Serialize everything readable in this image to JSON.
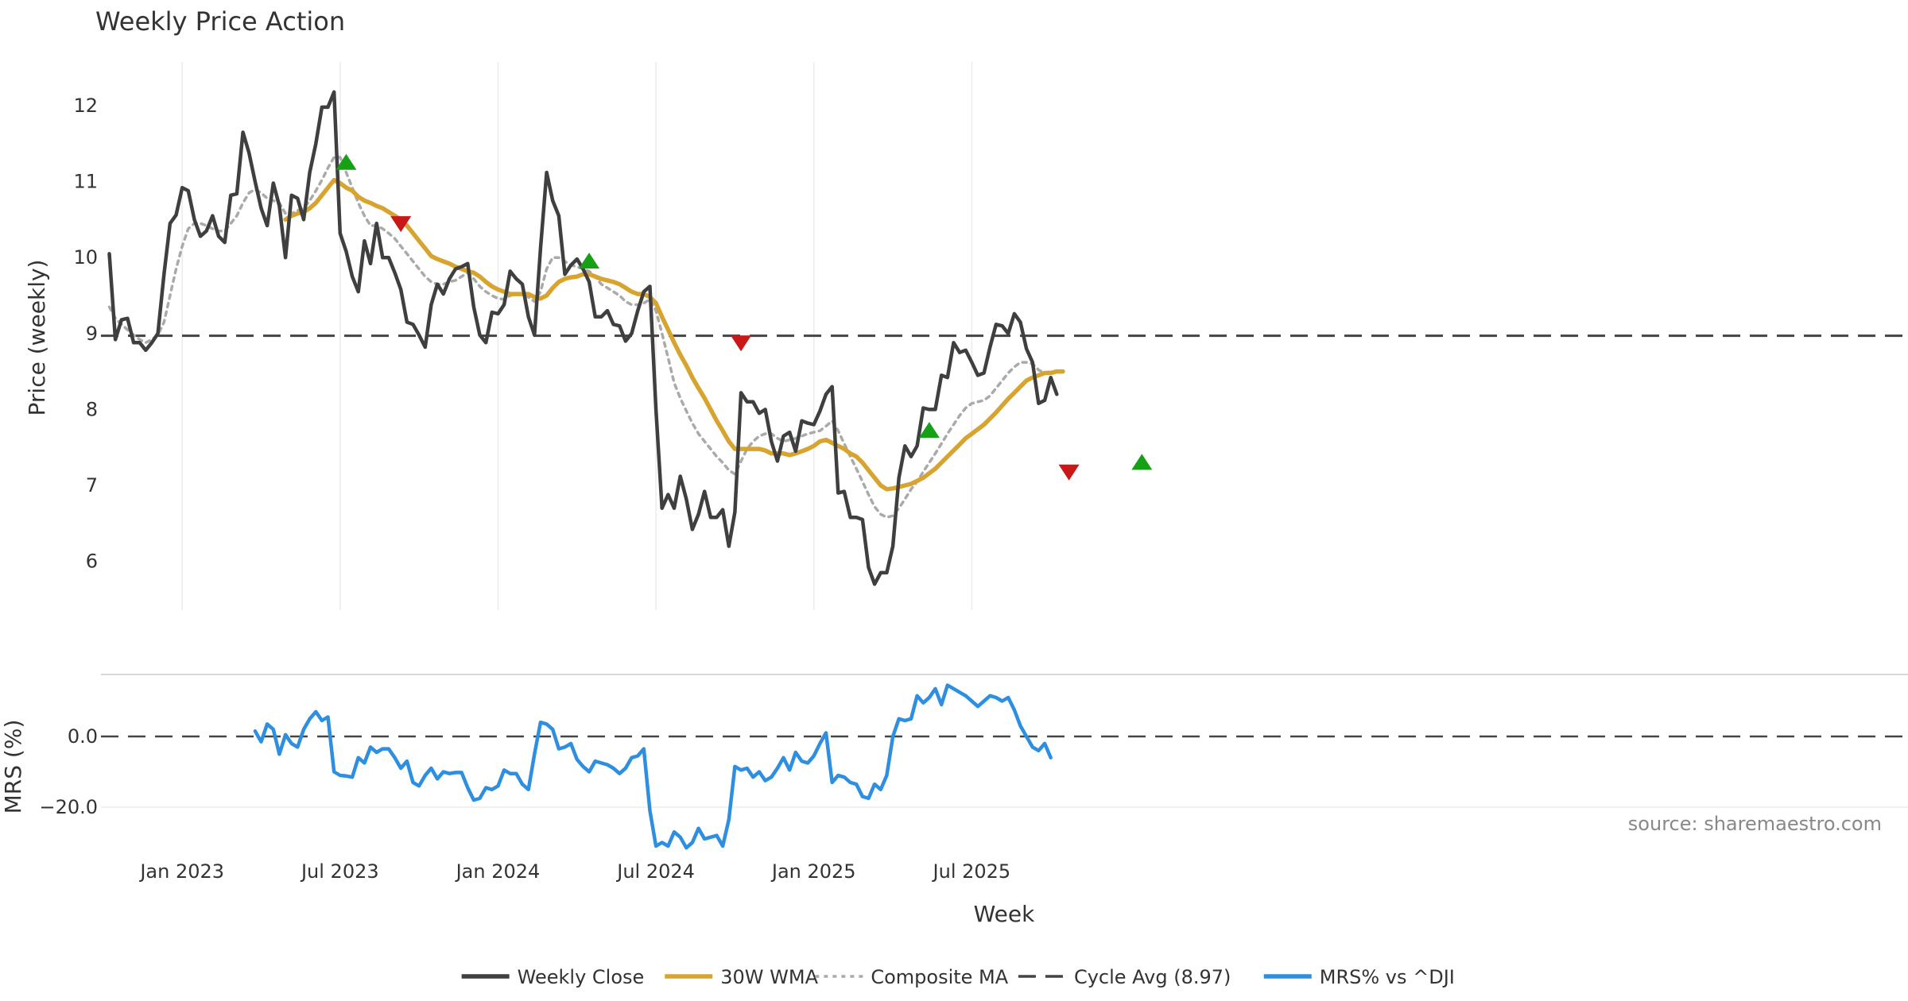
{
  "chart_data": [
    {
      "type": "line",
      "title": "Weekly Price Action",
      "ylabel": "Price (weekly)",
      "ylim": [
        5.35,
        12.6
      ],
      "yticks": [
        6,
        7,
        8,
        9,
        10,
        11,
        12
      ],
      "cycle_avg": 8.97,
      "x_start": "2022-10-10",
      "x_step_days": 7,
      "series": [
        {
          "name": "Weekly Close",
          "color": "#3f3f3f",
          "style": "solid",
          "values": [
            10.05,
            8.92,
            9.18,
            9.2,
            8.88,
            8.88,
            8.78,
            8.88,
            9.0,
            9.78,
            10.45,
            10.56,
            10.92,
            10.88,
            10.5,
            10.28,
            10.35,
            10.55,
            10.28,
            10.2,
            10.82,
            10.84,
            11.65,
            11.38,
            11.0,
            10.65,
            10.42,
            10.98,
            10.68,
            10.0,
            10.82,
            10.78,
            10.5,
            11.12,
            11.5,
            11.98,
            11.98,
            12.18,
            10.32,
            10.08,
            9.75,
            9.55,
            10.22,
            9.92,
            10.45,
            10.0,
            10.0,
            9.8,
            9.58,
            9.15,
            9.12,
            8.98,
            8.82,
            9.38,
            9.65,
            9.52,
            9.72,
            9.85,
            9.88,
            9.92,
            9.35,
            8.98,
            8.88,
            9.28,
            9.26,
            9.38,
            9.82,
            9.72,
            9.65,
            9.22,
            8.98,
            10.12,
            11.12,
            10.75,
            10.55,
            9.78,
            9.9,
            9.98,
            9.85,
            9.68,
            9.22,
            9.22,
            9.3,
            9.12,
            9.1,
            8.9,
            9.0,
            9.3,
            9.55,
            9.62,
            8.0,
            6.7,
            6.88,
            6.7,
            7.12,
            6.82,
            6.42,
            6.62,
            6.92,
            6.58,
            6.58,
            6.68,
            6.2,
            6.65,
            8.22,
            8.1,
            8.1,
            7.95,
            8.0,
            7.58,
            7.32,
            7.65,
            7.7,
            7.45,
            7.85,
            7.82,
            7.8,
            7.98,
            8.2,
            8.3,
            6.9,
            6.92,
            6.58,
            6.58,
            6.55,
            5.92,
            5.7,
            5.85,
            5.85,
            6.2,
            7.1,
            7.52,
            7.38,
            7.52,
            8.02,
            8.0,
            8.0,
            8.45,
            8.42,
            8.88,
            8.75,
            8.78,
            8.62,
            8.45,
            8.48,
            8.82,
            9.12,
            9.1,
            9.0,
            9.26,
            9.15,
            8.8,
            8.62,
            8.08,
            8.12,
            8.42,
            8.2
          ]
        },
        {
          "name": "30W WMA",
          "color": "#d8a430",
          "style": "solid",
          "start_index": 29,
          "values": [
            10.5,
            10.55,
            10.58,
            10.6,
            10.65,
            10.72,
            10.82,
            10.92,
            11.02,
            10.98,
            10.92,
            10.88,
            10.8,
            10.75,
            10.72,
            10.68,
            10.65,
            10.6,
            10.55,
            10.5,
            10.42,
            10.32,
            10.22,
            10.12,
            10.02,
            9.98,
            9.95,
            9.92,
            9.88,
            9.85,
            9.82,
            9.8,
            9.75,
            9.68,
            9.62,
            9.58,
            9.55,
            9.52,
            9.52,
            9.52,
            9.52,
            9.48,
            9.46,
            9.5,
            9.6,
            9.68,
            9.72,
            9.74,
            9.75,
            9.78,
            9.78,
            9.75,
            9.72,
            9.7,
            9.68,
            9.65,
            9.6,
            9.55,
            9.52,
            9.52,
            9.48,
            9.4,
            9.22,
            9.05,
            8.88,
            8.72,
            8.58,
            8.42,
            8.28,
            8.15,
            8.0,
            7.85,
            7.72,
            7.58,
            7.48,
            7.48,
            7.48,
            7.48,
            7.48,
            7.46,
            7.42,
            7.42,
            7.42,
            7.4,
            7.42,
            7.45,
            7.48,
            7.52,
            7.58,
            7.6,
            7.56,
            7.52,
            7.48,
            7.42,
            7.38,
            7.3,
            7.2,
            7.1,
            7.0,
            6.95,
            6.96,
            6.98,
            7.0,
            7.02,
            7.06,
            7.1,
            7.16,
            7.22,
            7.3,
            7.38,
            7.46,
            7.54,
            7.62,
            7.68,
            7.74,
            7.8,
            7.88,
            7.96,
            8.05,
            8.14,
            8.22,
            8.3,
            8.38,
            8.42,
            8.45,
            8.48,
            8.48,
            8.5,
            8.5
          ]
        },
        {
          "name": "Composite MA",
          "color": "#aaaaaa",
          "style": "dotted",
          "values": [
            9.35,
            9.2,
            9.12,
            9.05,
            8.98,
            8.92,
            8.88,
            8.92,
            8.98,
            9.15,
            9.5,
            9.85,
            10.15,
            10.38,
            10.45,
            10.45,
            10.42,
            10.38,
            10.35,
            10.35,
            10.45,
            10.55,
            10.72,
            10.85,
            10.9,
            10.85,
            10.78,
            10.75,
            10.72,
            10.58,
            10.58,
            10.62,
            10.65,
            10.75,
            10.88,
            11.02,
            11.18,
            11.32,
            11.32,
            11.12,
            10.92,
            10.72,
            10.55,
            10.42,
            10.42,
            10.38,
            10.32,
            10.25,
            10.15,
            10.05,
            9.95,
            9.85,
            9.75,
            9.68,
            9.65,
            9.65,
            9.68,
            9.7,
            9.75,
            9.8,
            9.72,
            9.62,
            9.55,
            9.5,
            9.46,
            9.45,
            9.5,
            9.52,
            9.52,
            9.48,
            9.42,
            9.55,
            9.85,
            10.0,
            10.0,
            9.95,
            9.9,
            9.88,
            9.85,
            9.82,
            9.75,
            9.65,
            9.6,
            9.55,
            9.5,
            9.42,
            9.38,
            9.38,
            9.4,
            9.45,
            9.3,
            9.0,
            8.68,
            8.35,
            8.15,
            7.98,
            7.82,
            7.68,
            7.58,
            7.48,
            7.38,
            7.3,
            7.2,
            7.15,
            7.32,
            7.48,
            7.58,
            7.65,
            7.68,
            7.68,
            7.62,
            7.58,
            7.6,
            7.62,
            7.65,
            7.68,
            7.7,
            7.72,
            7.78,
            7.85,
            7.72,
            7.55,
            7.38,
            7.22,
            7.05,
            6.88,
            6.72,
            6.62,
            6.58,
            6.6,
            6.7,
            6.82,
            6.95,
            7.05,
            7.18,
            7.3,
            7.42,
            7.55,
            7.68,
            7.8,
            7.92,
            8.02,
            8.08,
            8.1,
            8.12,
            8.18,
            8.28,
            8.38,
            8.48,
            8.56,
            8.62,
            8.62,
            8.6,
            8.52,
            8.48,
            8.5,
            8.5
          ]
        },
        {
          "name": "Cycle Avg (8.97)",
          "color": "#444444",
          "style": "dashed",
          "constant": 8.97
        }
      ],
      "markers": {
        "up": {
          "color": "#15a015",
          "points": [
            [
              39,
              11.25
            ],
            [
              79,
              9.95
            ],
            [
              135,
              7.72
            ],
            [
              170,
              7.3
            ]
          ]
        },
        "down": {
          "color": "#c81818",
          "points": [
            [
              48,
              10.45
            ],
            [
              104,
              8.88
            ],
            [
              158,
              7.18
            ]
          ]
        }
      }
    },
    {
      "type": "line",
      "ylabel": "MRS (%)",
      "xlabel": "Week",
      "ylim": [
        -36,
        19
      ],
      "yticks": [
        0.0,
        -20.0
      ],
      "ytick_labels": [
        "0.0",
        "−20.0"
      ],
      "zero_line": 0,
      "xtick_labels": [
        "Jan 2023",
        "Jul 2023",
        "Jan 2024",
        "Jul 2024",
        "Jan 2025",
        "Jul 2025"
      ],
      "xtick_index": [
        12,
        38,
        64,
        90,
        116,
        142
      ],
      "series": [
        {
          "name": "MRS% vs ^DJI",
          "color": "#2e8ee0",
          "style": "solid",
          "start_index": 24,
          "values": [
            1.5,
            -1.5,
            3.5,
            2,
            -5,
            0.5,
            -2,
            -3,
            2,
            5,
            7,
            4.5,
            5.5,
            -10,
            -11,
            -11.2,
            -11.5,
            -6,
            -7.5,
            -3,
            -4.5,
            -3.5,
            -3.5,
            -6,
            -9,
            -7,
            -13,
            -14,
            -11,
            -9,
            -12,
            -10,
            -10.5,
            -10.2,
            -10.2,
            -14.5,
            -18,
            -17.5,
            -14.5,
            -15,
            -14,
            -9.5,
            -10.5,
            -10.5,
            -13.5,
            -15,
            -5,
            4,
            3.5,
            2,
            -3.5,
            -3,
            -2,
            -6.5,
            -8.5,
            -10,
            -7,
            -7.5,
            -8,
            -9,
            -10.5,
            -9,
            -6,
            -5.5,
            -3.5,
            -21,
            -31,
            -30,
            -31,
            -27,
            -28.5,
            -31.5,
            -30,
            -26,
            -29,
            -28.5,
            -28,
            -31,
            -23.5,
            -8.5,
            -9.5,
            -9,
            -11.5,
            -10,
            -12.5,
            -11.5,
            -9,
            -6,
            -9.5,
            -4.5,
            -7,
            -7.5,
            -5.5,
            -2,
            1,
            -13,
            -11,
            -11.5,
            -13,
            -13.5,
            -17,
            -17.5,
            -13.5,
            -15,
            -11,
            0,
            5,
            4.5,
            5,
            11.5,
            9.5,
            11,
            13.5,
            9,
            14.5,
            13.5,
            12.5,
            11.5,
            10,
            8.5,
            10,
            11.5,
            11,
            10,
            11,
            7.5,
            3,
            0,
            -3,
            -4,
            -2,
            -6
          ]
        }
      ],
      "source_note": "source: sharemaestro.com"
    }
  ],
  "legend": {
    "placement": "bottom-center",
    "items": [
      {
        "label": "Weekly Close",
        "color": "#3f3f3f",
        "style": "solid"
      },
      {
        "label": "30W WMA",
        "color": "#d8a430",
        "style": "solid"
      },
      {
        "label": "Composite MA",
        "color": "#aaaaaa",
        "style": "dotted"
      },
      {
        "label": "Cycle Avg (8.97)",
        "color": "#444444",
        "style": "dashed"
      },
      {
        "label": "MRS% vs ^DJI",
        "color": "#2e8ee0",
        "style": "solid"
      }
    ]
  }
}
